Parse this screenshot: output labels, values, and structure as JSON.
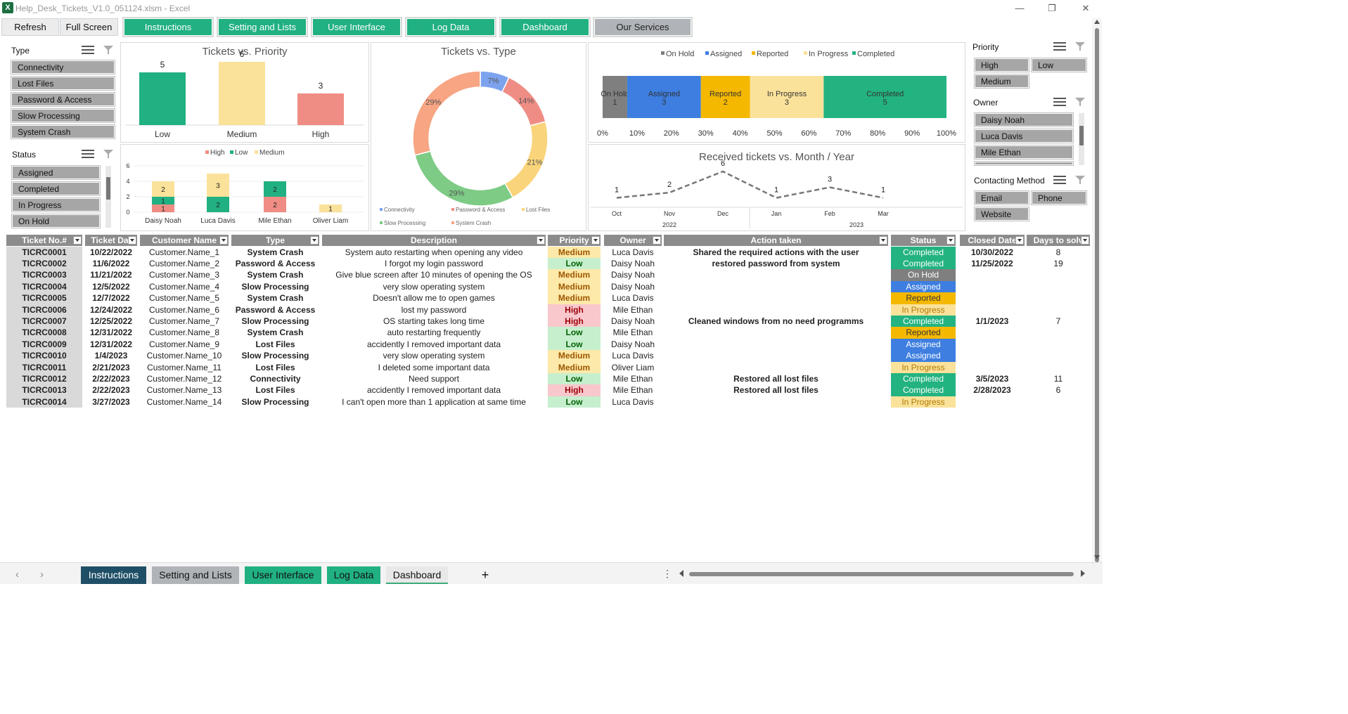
{
  "window": {
    "title": "Help_Desk_Tickets_V1.0_051124.xlsm  -  Excel",
    "minimize": "—",
    "restore": "❐",
    "close": "✕"
  },
  "toolbar": {
    "refresh": "Refresh",
    "fullscreen": "Full Screen"
  },
  "nav": [
    "Instructions",
    "Setting and Lists",
    "User Interface",
    "Log Data",
    "Dashboard",
    "Our Services"
  ],
  "colors": {
    "green": "#21b082",
    "gray": "#b0b4b8",
    "onhold": "#7f7f7f",
    "assigned": "#3d7ee0",
    "reported": "#f5b800",
    "inprogress": "#fae29b",
    "completed": "#23b381",
    "high": "#ef8d85",
    "low": "#21b082",
    "medium": "#fae29b"
  },
  "slicers": {
    "type": {
      "title": "Type",
      "items": [
        "Connectivity",
        "Lost Files",
        "Password & Access",
        "Slow Processing",
        "System Crash"
      ]
    },
    "status": {
      "title": "Status",
      "items": [
        "Assigned",
        "Completed",
        "In Progress",
        "On Hold"
      ]
    },
    "priority": {
      "title": "Priority",
      "items": [
        "High",
        "Low",
        "Medium"
      ]
    },
    "owner": {
      "title": "Owner",
      "items": [
        "Daisy Noah",
        "Luca Davis",
        "Mile Ethan"
      ]
    },
    "contact": {
      "title": "Contacting Method",
      "items": [
        "Email",
        "Phone",
        "Website"
      ]
    }
  },
  "chart_data": [
    {
      "type": "bar",
      "title": "Tickets vs. Priority",
      "categories": [
        "Low",
        "Medium",
        "High"
      ],
      "values": [
        5,
        6,
        3
      ],
      "colors": [
        "#21b082",
        "#fae29b",
        "#ef8d85"
      ]
    },
    {
      "type": "bar",
      "stacked": true,
      "title": "",
      "categories": [
        "Daisy Noah",
        "Luca Davis",
        "Mile Ethan",
        "Oliver Liam"
      ],
      "series": [
        {
          "name": "High",
          "values": [
            1,
            0,
            2,
            0
          ],
          "color": "#ef8d85"
        },
        {
          "name": "Low",
          "values": [
            1,
            2,
            2,
            0
          ],
          "color": "#21b082"
        },
        {
          "name": "Medium",
          "values": [
            2,
            3,
            0,
            1
          ],
          "color": "#fae29b"
        }
      ],
      "ylim": [
        0,
        6
      ],
      "yticks": [
        "0",
        "2",
        "4",
        "6"
      ]
    },
    {
      "type": "pie",
      "donut": true,
      "title": "Tickets vs. Type",
      "slices": [
        {
          "name": "Connectivity",
          "value": 7,
          "label": "7%",
          "color": "#7ea3ee"
        },
        {
          "name": "Password & Access",
          "value": 14,
          "label": "14%",
          "color": "#ef8d85"
        },
        {
          "name": "Lost Files",
          "value": 21,
          "label": "21%",
          "color": "#fad47a"
        },
        {
          "name": "Slow Processing",
          "value": 29,
          "label": "29%",
          "color": "#7dcb85"
        },
        {
          "name": "System Crash",
          "value": 29,
          "label": "29%",
          "color": "#f7a583"
        }
      ]
    },
    {
      "type": "bar",
      "stacked100": true,
      "title": "",
      "series": [
        {
          "name": "On Hold",
          "value": 1,
          "color": "#7f7f7f"
        },
        {
          "name": "Assigned",
          "value": 3,
          "color": "#3d7ee0"
        },
        {
          "name": "Reported",
          "value": 2,
          "color": "#f5b800"
        },
        {
          "name": "In Progress",
          "value": 3,
          "color": "#fae29b"
        },
        {
          "name": "Completed",
          "value": 5,
          "color": "#23b381"
        }
      ],
      "xticks": [
        "0%",
        "10%",
        "20%",
        "30%",
        "40%",
        "50%",
        "60%",
        "70%",
        "80%",
        "90%",
        "100%"
      ]
    },
    {
      "type": "line",
      "title": "Received tickets vs. Month / Year",
      "x": [
        "Oct",
        "Nov",
        "Dec",
        "Jan",
        "Feb",
        "Mar"
      ],
      "years": [
        "2022",
        "2023"
      ],
      "values": [
        1,
        2,
        6,
        1,
        3,
        1
      ]
    }
  ],
  "table": {
    "headers": [
      "Ticket No.#",
      "Ticket Dat",
      "Customer Name",
      "Type",
      "Description",
      "Priority",
      "Owner",
      "Action taken",
      "Status",
      "Closed Date",
      "Days to solv"
    ],
    "rows": [
      [
        "TICRC0001",
        "10/22/2022",
        "Customer.Name_1",
        "System Crash",
        "System auto restarting when opening any video",
        "Medium",
        "Luca Davis",
        "Shared the required actions with the user",
        "Completed",
        "10/30/2022",
        "8"
      ],
      [
        "TICRC0002",
        "11/6/2022",
        "Customer.Name_2",
        "Password & Access",
        "I forgot my login password",
        "Low",
        "Daisy Noah",
        "restored password from system",
        "Completed",
        "11/25/2022",
        "19"
      ],
      [
        "TICRC0003",
        "11/21/2022",
        "Customer.Name_3",
        "System Crash",
        "Give blue screen after 10 minutes of opening the OS",
        "Medium",
        "Daisy Noah",
        "",
        "On Hold",
        "",
        ""
      ],
      [
        "TICRC0004",
        "12/5/2022",
        "Customer.Name_4",
        "Slow Processing",
        "very slow operating system",
        "Medium",
        "Daisy Noah",
        "",
        "Assigned",
        "",
        ""
      ],
      [
        "TICRC0005",
        "12/7/2022",
        "Customer.Name_5",
        "System Crash",
        "Doesn't allow me to open games",
        "Medium",
        "Luca Davis",
        "",
        "Reported",
        "",
        ""
      ],
      [
        "TICRC0006",
        "12/24/2022",
        "Customer.Name_6",
        "Password & Access",
        "lost my password",
        "High",
        "Mile Ethan",
        "",
        "In Progress",
        "",
        ""
      ],
      [
        "TICRC0007",
        "12/25/2022",
        "Customer.Name_7",
        "Slow Processing",
        "OS starting takes long time",
        "High",
        "Daisy Noah",
        "Cleaned windows from no need programms",
        "Completed",
        "1/1/2023",
        "7"
      ],
      [
        "TICRC0008",
        "12/31/2022",
        "Customer.Name_8",
        "System Crash",
        "auto restarting frequently",
        "Low",
        "Mile Ethan",
        "",
        "Reported",
        "",
        ""
      ],
      [
        "TICRC0009",
        "12/31/2022",
        "Customer.Name_9",
        "Lost Files",
        "accidently I removed important data",
        "Low",
        "Daisy Noah",
        "",
        "Assigned",
        "",
        ""
      ],
      [
        "TICRC0010",
        "1/4/2023",
        "Customer.Name_10",
        "Slow Processing",
        "very slow operating system",
        "Medium",
        "Luca Davis",
        "",
        "Assigned",
        "",
        ""
      ],
      [
        "TICRC0011",
        "2/21/2023",
        "Customer.Name_11",
        "Lost Files",
        "I deleted some important data",
        "Medium",
        "Oliver Liam",
        "",
        "In Progress",
        "",
        ""
      ],
      [
        "TICRC0012",
        "2/22/2023",
        "Customer.Name_12",
        "Connectivity",
        "Need support",
        "Low",
        "Mile Ethan",
        "Restored all lost files",
        "Completed",
        "3/5/2023",
        "11"
      ],
      [
        "TICRC0013",
        "2/22/2023",
        "Customer.Name_13",
        "Lost Files",
        "accidently I removed important data",
        "High",
        "Mile Ethan",
        "Restored all lost files",
        "Completed",
        "2/28/2023",
        "6"
      ],
      [
        "TICRC0014",
        "3/27/2023",
        "Customer.Name_14",
        "Slow Processing",
        "I can't open more than 1 application at same time",
        "Low",
        "Luca Davis",
        "",
        "In Progress",
        "",
        ""
      ]
    ]
  },
  "sheet_tabs": [
    "Instructions",
    "Setting and Lists",
    "User Interface",
    "Log Data",
    "Dashboard"
  ],
  "sheet_add": "+"
}
